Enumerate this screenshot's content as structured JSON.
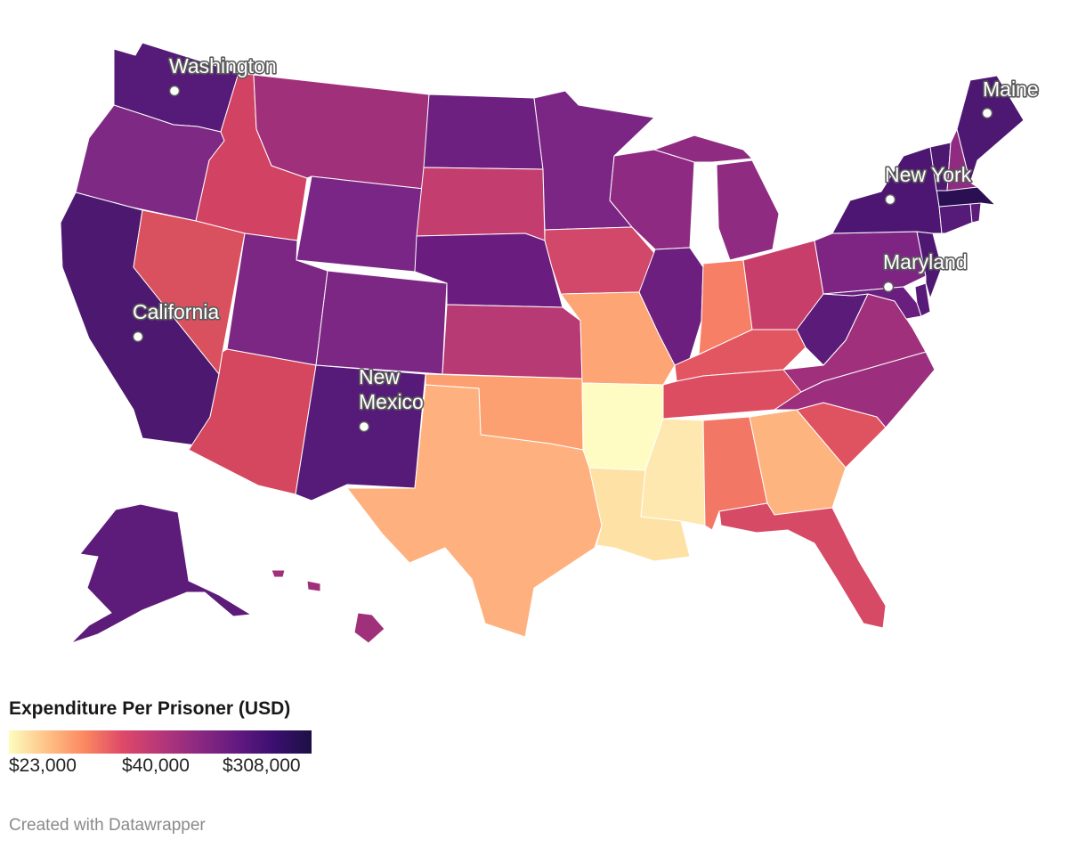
{
  "colors": {
    "scale": [
      "#fcfdbf",
      "#fec287",
      "#fb8861",
      "#de4968",
      "#b73779",
      "#8c2981",
      "#641a80",
      "#3b0f70",
      "#1c1044"
    ]
  },
  "states": {
    "WA": {
      "fill": "#561a78"
    },
    "OR": {
      "fill": "#7e2a85"
    },
    "CA": {
      "fill": "#4c1870"
    },
    "ID": {
      "fill": "#d24263"
    },
    "NV": {
      "fill": "#d9505e"
    },
    "MT": {
      "fill": "#a1307a"
    },
    "WY": {
      "fill": "#7a2686"
    },
    "UT": {
      "fill": "#7d2785"
    },
    "AZ": {
      "fill": "#d4475f"
    },
    "CO": {
      "fill": "#7c2784"
    },
    "NM": {
      "fill": "#561a78"
    },
    "ND": {
      "fill": "#6e2080"
    },
    "SD": {
      "fill": "#c43d6f"
    },
    "NE": {
      "fill": "#6a1d7e"
    },
    "KS": {
      "fill": "#b83a75"
    },
    "OK": {
      "fill": "#fca071"
    },
    "TX": {
      "fill": "#feb17f"
    },
    "MN": {
      "fill": "#7b2584"
    },
    "IA": {
      "fill": "#d2486a"
    },
    "MO": {
      "fill": "#fda574"
    },
    "AR": {
      "fill": "#fefcc3"
    },
    "LA": {
      "fill": "#fee2a5"
    },
    "WI": {
      "fill": "#8e2a81"
    },
    "IL": {
      "fill": "#6c1f7f"
    },
    "MI": {
      "fill": "#8f2b81"
    },
    "IN": {
      "fill": "#f67f66"
    },
    "OH": {
      "fill": "#c83e6b"
    },
    "KY": {
      "fill": "#e25661"
    },
    "TN": {
      "fill": "#dc4d62"
    },
    "MS": {
      "fill": "#fee8b0"
    },
    "AL": {
      "fill": "#f27765"
    },
    "GA": {
      "fill": "#fdb47e"
    },
    "FL": {
      "fill": "#d64a66"
    },
    "SC": {
      "fill": "#df5360"
    },
    "NC": {
      "fill": "#9c2f7d"
    },
    "VA": {
      "fill": "#a0307c"
    },
    "WV": {
      "fill": "#5b1b79"
    },
    "PA": {
      "fill": "#7e2584"
    },
    "NY": {
      "fill": "#4d1672"
    },
    "MD": {
      "fill": "#6a1e80"
    },
    "DE": {
      "fill": "#571a78"
    },
    "NJ": {
      "fill": "#4e1872"
    },
    "CT": {
      "fill": "#561a78"
    },
    "RI": {
      "fill": "#5d1c7a"
    },
    "MA": {
      "fill": "#2a1053"
    },
    "VT": {
      "fill": "#4c1870"
    },
    "NH": {
      "fill": "#8f2b81"
    },
    "ME": {
      "fill": "#4d1872"
    },
    "AK": {
      "fill": "#5d1b7a"
    },
    "HI": {
      "fill": "#a1307a"
    }
  },
  "labels": {
    "washington": "Washington",
    "maine": "Maine",
    "new_york": "New York",
    "maryland": "Maryland",
    "california": "California",
    "new_mexico_line1": "New",
    "new_mexico_line2": "Mexico"
  },
  "legend": {
    "title": "Expenditure Per Prisoner (USD)",
    "ticks": [
      "$23,000",
      "$40,000",
      "$308,000"
    ]
  },
  "credit": "Created with Datawrapper"
}
